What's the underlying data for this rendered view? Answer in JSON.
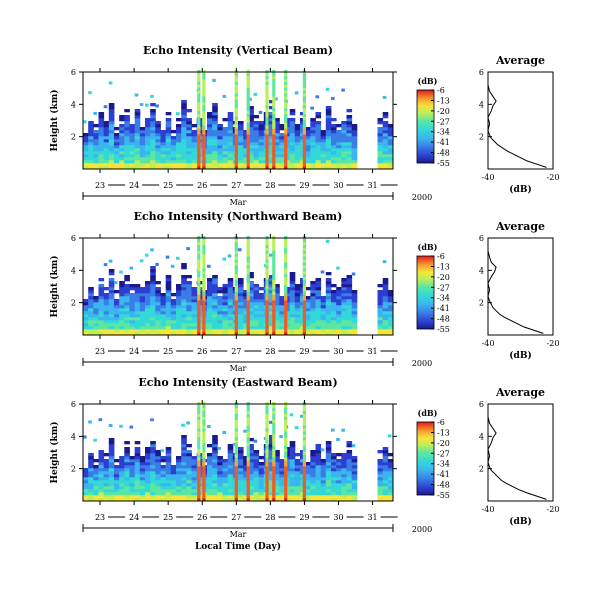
{
  "figure": {
    "xlabel": "Local Time (Day)",
    "month_label": "Mar",
    "year_label": "2000",
    "ylabel": "Height (km)",
    "colorbar_unit": "(dB)",
    "avg_title": "Average",
    "avg_xlabel": "(dB)"
  },
  "colormap": [
    "#1a1a8c",
    "#2c3fd0",
    "#3a7de6",
    "#3bb5ef",
    "#33d8d8",
    "#5ee6a0",
    "#b9ef5a",
    "#f5e43a",
    "#f6a530",
    "#f05a24",
    "#d81e1e"
  ],
  "chart_data": [
    {
      "type": "heatmap",
      "title": "Echo Intensity (Vertical Beam)",
      "xlabel": "Local Time (Day)",
      "ylabel": "Height (km)",
      "x_days": [
        "23",
        "24",
        "25",
        "26",
        "27",
        "28",
        "29",
        "30",
        "31"
      ],
      "x_range": [
        22.5,
        31.6
      ],
      "ylim": [
        0,
        6
      ],
      "y_ticks": [
        "2",
        "4",
        "6"
      ],
      "colorbar": {
        "unit": "(dB)",
        "ticks": [
          "-6",
          "-13",
          "-20",
          "-27",
          "-34",
          "-41",
          "-48",
          "-55"
        ],
        "range": [
          -55,
          -6
        ]
      },
      "cloud_top_km": [
        2.2,
        3.0,
        2.6,
        3.4,
        2.8,
        4.1,
        2.5,
        3.2,
        3.6,
        2.9,
        3.8,
        2.7,
        3.3,
        4.0,
        3.1,
        2.6,
        3.5,
        2.4,
        3.0,
        4.2,
        3.6,
        2.8,
        3.1,
        2.5,
        3.4,
        3.9,
        2.7,
        3.0,
        3.6,
        2.9,
        3.3,
        2.6,
        3.8,
        3.2,
        2.8,
        3.4,
        4.1,
        3.0,
        2.6,
        3.2,
        3.7,
        2.9,
        3.5,
        2.7,
        3.1,
        3.4,
        2.5,
        3.9,
        3.0,
        2.8,
        3.3,
        3.6,
        2.6,
        0,
        0,
        0,
        0,
        3.0,
        3.4,
        2.8
      ],
      "rain_events_day": [
        25.9,
        26.05,
        27.0,
        27.35,
        27.9,
        28.1,
        28.45,
        29.0
      ],
      "average_profile": {
        "title": "Average",
        "xlabel": "(dB)",
        "x_ticks": [
          "-40",
          "-20"
        ],
        "xlim": [
          -40,
          -20
        ],
        "ylim": [
          0,
          6
        ],
        "y_ticks": [
          "2",
          "4",
          "6"
        ],
        "height_km": [
          0.1,
          0.3,
          0.5,
          0.7,
          0.9,
          1.1,
          1.3,
          1.5,
          1.7,
          1.9,
          2.1,
          2.4,
          2.8,
          3.2,
          3.6,
          3.9,
          4.2,
          4.5,
          4.8,
          5.2,
          5.6,
          6.0
        ],
        "db": [
          -22,
          -25,
          -28,
          -30,
          -32,
          -34,
          -35.5,
          -37,
          -38,
          -39,
          -39.5,
          -40,
          -39.5,
          -40,
          -39,
          -38.5,
          -37.5,
          -38.5,
          -39.5,
          -40,
          -40,
          -40
        ]
      }
    },
    {
      "type": "heatmap",
      "title": "Echo Intensity (Northward Beam)",
      "xlabel": "Local Time (Day)",
      "ylabel": "Height (km)",
      "x_days": [
        "23",
        "24",
        "25",
        "26",
        "27",
        "28",
        "29",
        "30",
        "31"
      ],
      "x_range": [
        22.5,
        31.6
      ],
      "ylim": [
        0,
        6
      ],
      "y_ticks": [
        "2",
        "4",
        "6"
      ],
      "colorbar": {
        "unit": "(dB)",
        "ticks": [
          "-6",
          "-13",
          "-20",
          "-27",
          "-34",
          "-41",
          "-48",
          "-55"
        ],
        "range": [
          -55,
          -6
        ]
      },
      "cloud_top_km": [
        2.3,
        3.1,
        2.7,
        3.5,
        2.9,
        4.0,
        2.6,
        3.3,
        3.7,
        3.0,
        3.7,
        2.8,
        3.4,
        4.1,
        3.2,
        2.7,
        3.6,
        2.5,
        3.1,
        4.3,
        3.7,
        2.9,
        3.2,
        2.6,
        3.5,
        4.0,
        2.8,
        3.1,
        3.7,
        3.0,
        3.4,
        2.7,
        3.9,
        3.3,
        2.9,
        3.5,
        4.2,
        3.1,
        2.7,
        3.3,
        3.8,
        3.0,
        3.6,
        2.8,
        3.2,
        3.5,
        2.6,
        4.0,
        3.1,
        2.9,
        3.4,
        3.7,
        2.7,
        0,
        0,
        0,
        0,
        3.1,
        3.5,
        2.9
      ],
      "rain_events_day": [
        25.9,
        26.05,
        27.0,
        27.35,
        27.9,
        28.1,
        28.45,
        29.0
      ],
      "average_profile": {
        "title": "Average",
        "xlabel": "(dB)",
        "x_ticks": [
          "-40",
          "-20"
        ],
        "xlim": [
          -40,
          -20
        ],
        "ylim": [
          0,
          6
        ],
        "y_ticks": [
          "2",
          "4",
          "6"
        ],
        "height_km": [
          0.1,
          0.3,
          0.5,
          0.7,
          0.9,
          1.1,
          1.3,
          1.5,
          1.7,
          1.9,
          2.1,
          2.4,
          2.8,
          3.2,
          3.6,
          3.9,
          4.2,
          4.5,
          4.8,
          5.2,
          5.6,
          6.0
        ],
        "db": [
          -23,
          -26,
          -29,
          -31,
          -33,
          -35,
          -36.5,
          -37.5,
          -38.5,
          -39,
          -39.5,
          -40,
          -39.5,
          -40,
          -39,
          -38,
          -37.5,
          -39,
          -39.5,
          -40,
          -40,
          -40
        ]
      }
    },
    {
      "type": "heatmap",
      "title": "Echo Intensity (Eastward Beam)",
      "xlabel": "Local Time (Day)",
      "ylabel": "Height (km)",
      "x_days": [
        "23",
        "24",
        "25",
        "26",
        "27",
        "28",
        "29",
        "30",
        "31"
      ],
      "x_range": [
        22.5,
        31.6
      ],
      "ylim": [
        0,
        6
      ],
      "y_ticks": [
        "2",
        "4",
        "6"
      ],
      "colorbar": {
        "unit": "(dB)",
        "ticks": [
          "-6",
          "-13",
          "-20",
          "-27",
          "-34",
          "-41",
          "-48",
          "-55"
        ],
        "range": [
          -55,
          -6
        ]
      },
      "cloud_top_km": [
        2.2,
        3.0,
        2.6,
        3.3,
        2.8,
        4.0,
        2.5,
        3.1,
        3.6,
        2.9,
        3.6,
        2.7,
        3.3,
        4.0,
        3.1,
        2.6,
        3.5,
        2.4,
        3.0,
        4.1,
        3.6,
        2.8,
        3.1,
        2.5,
        3.4,
        3.9,
        2.7,
        3.0,
        3.6,
        2.9,
        3.3,
        2.6,
        3.8,
        3.2,
        2.8,
        3.4,
        4.1,
        3.0,
        2.6,
        3.2,
        3.7,
        2.9,
        3.5,
        2.7,
        3.1,
        3.4,
        2.5,
        3.9,
        3.0,
        2.8,
        3.3,
        3.6,
        2.6,
        0,
        0,
        0,
        0,
        3.0,
        3.4,
        2.8
      ],
      "rain_events_day": [
        25.9,
        26.05,
        27.0,
        27.35,
        27.9,
        28.1,
        28.45,
        29.0
      ],
      "average_profile": {
        "title": "Average",
        "xlabel": "(dB)",
        "x_ticks": [
          "-40",
          "-20"
        ],
        "xlim": [
          -40,
          -20
        ],
        "ylim": [
          0,
          6
        ],
        "y_ticks": [
          "2",
          "4",
          "6"
        ],
        "height_km": [
          0.1,
          0.3,
          0.5,
          0.7,
          0.9,
          1.1,
          1.3,
          1.5,
          1.7,
          1.9,
          2.1,
          2.4,
          2.8,
          3.2,
          3.6,
          3.9,
          4.2,
          4.5,
          4.8,
          5.2,
          5.6,
          6.0
        ],
        "db": [
          -22,
          -25,
          -28,
          -30.5,
          -32.5,
          -34.5,
          -36,
          -37,
          -38,
          -39,
          -39.5,
          -40,
          -39.5,
          -40,
          -39,
          -38.5,
          -37.5,
          -38.5,
          -39.5,
          -40,
          -40,
          -40
        ]
      }
    }
  ]
}
